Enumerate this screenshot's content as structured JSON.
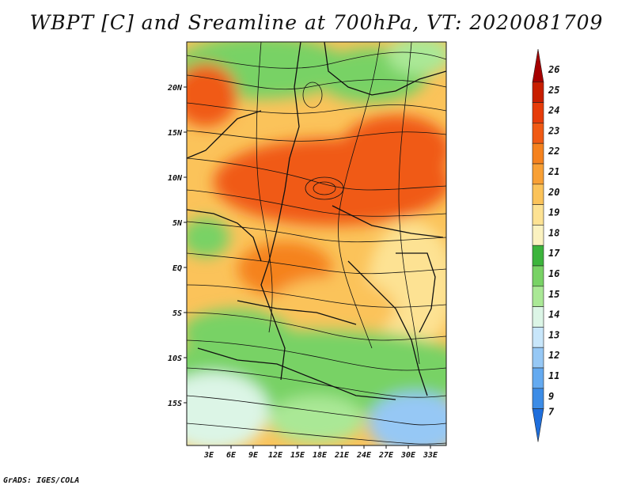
{
  "title": "WBPT [C] and Sreamline at 700hPa, VT: 2020081709",
  "footer": "GrADS: IGES/COLA",
  "map": {
    "lat_ticks": [
      "20N",
      "15N",
      "10N",
      "5N",
      "EQ",
      "5S",
      "10S",
      "15S"
    ],
    "lon_ticks": [
      "3E",
      "6E",
      "9E",
      "12E",
      "15E",
      "18E",
      "21E",
      "24E",
      "27E",
      "30E",
      "33E"
    ]
  },
  "colorbar": {
    "labels": [
      "26",
      "25",
      "24",
      "23",
      "22",
      "21",
      "20",
      "19",
      "18",
      "17",
      "16",
      "15",
      "14",
      "13",
      "12",
      "11",
      "9",
      "7"
    ],
    "colors": [
      "#a50000",
      "#c81e00",
      "#e63c0a",
      "#f05a14",
      "#f5821e",
      "#f8a035",
      "#fbc35a",
      "#fde293",
      "#fbf2c0",
      "#3cb43c",
      "#78d265",
      "#aae896",
      "#dcf5e6",
      "#c8e6fa",
      "#96c8f5",
      "#64aaf0",
      "#3c8ce6",
      "#1e6edc"
    ]
  }
}
